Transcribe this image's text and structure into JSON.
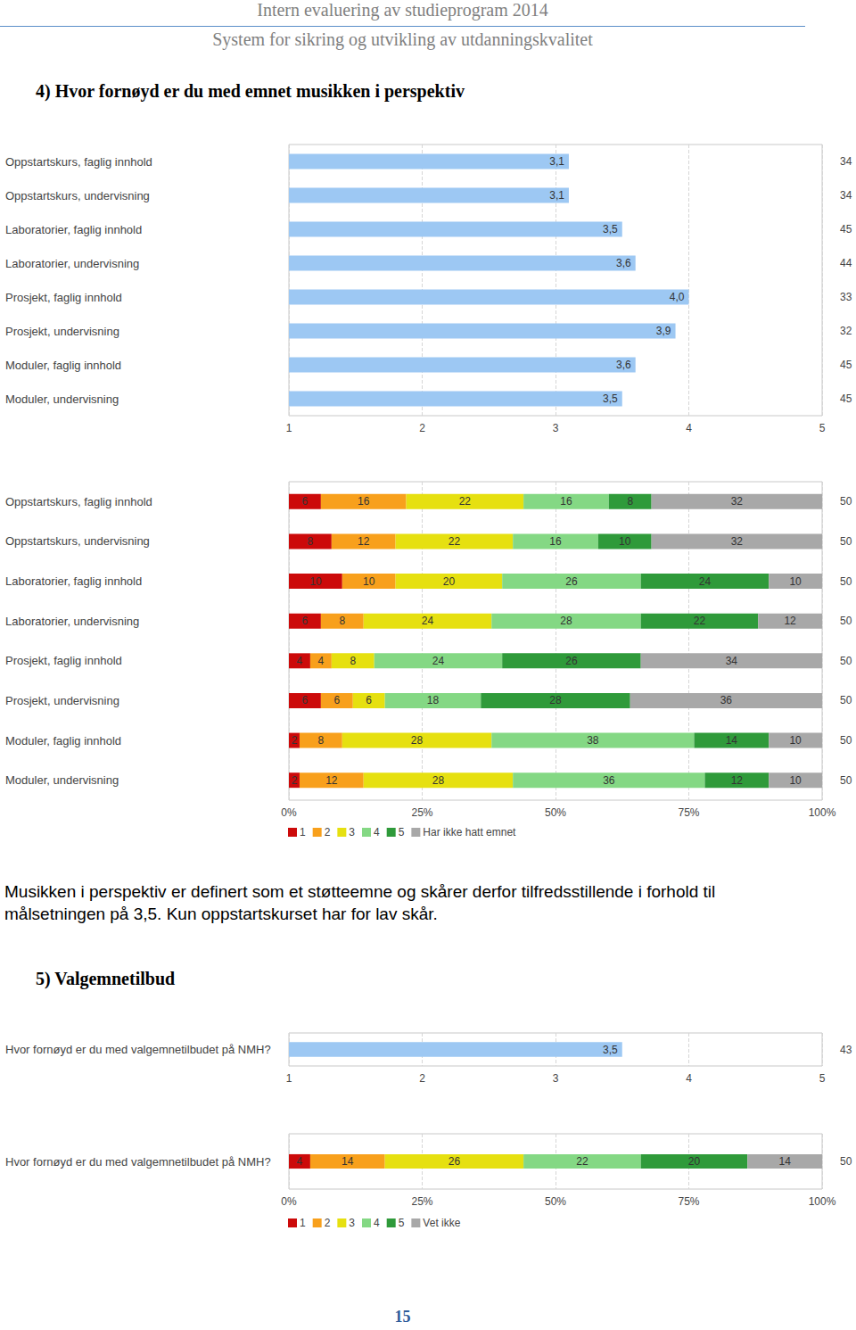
{
  "header": {
    "title": "Intern evaluering av studieprogram 2014",
    "subtitle": "System for sikring og utvikling av utdanningskvalitet"
  },
  "sections": [
    {
      "heading": "4) Hvor fornøyd er du med emnet musikken i perspektiv",
      "paragraph": "Musikken i perspektiv er definert som et støtteemne og skårer derfor tilfredsstillende i forhold til målsetningen på 3,5. Kun oppstartskurset har for lav skår."
    },
    {
      "heading": "5) Valgemnetilbud"
    }
  ],
  "page_number": "15",
  "chart_data": [
    {
      "type": "bar",
      "orientation": "horizontal",
      "grid": true,
      "data_labels": true,
      "color": "#9dc8f3",
      "categories": [
        "Oppstartskurs, faglig innhold",
        "Oppstartskurs, undervisning",
        "Laboratorier, faglig innhold",
        "Laboratorier, undervisning",
        "Prosjekt, faglig innhold",
        "Prosjekt, undervisning",
        "Moduler, faglig innhold",
        "Moduler, undervisning"
      ],
      "values": [
        3.1,
        3.1,
        3.5,
        3.6,
        4.0,
        3.9,
        3.6,
        3.5
      ],
      "value_labels": [
        "3,1",
        "3,1",
        "3,5",
        "3,6",
        "4,0",
        "3,9",
        "3,6",
        "3,5"
      ],
      "counts": [
        34,
        34,
        45,
        44,
        33,
        32,
        45,
        45
      ],
      "xlim": [
        1,
        5
      ],
      "xticks": [
        1,
        2,
        3,
        4,
        5
      ]
    },
    {
      "type": "bar",
      "orientation": "horizontal",
      "stacked": true,
      "grid": true,
      "data_labels": true,
      "legend": "bottom-left",
      "categories": [
        "Oppstartskurs, faglig innhold",
        "Oppstartskurs, undervisning",
        "Laboratorier, faglig innhold",
        "Laboratorier, undervisning",
        "Prosjekt, faglig innhold",
        "Prosjekt, undervisning",
        "Moduler, faglig innhold",
        "Moduler, undervisning"
      ],
      "series": [
        {
          "name": "1",
          "color": "#cc0a0a",
          "values": [
            6,
            8,
            10,
            6,
            4,
            6,
            2,
            2
          ]
        },
        {
          "name": "2",
          "color": "#f8a01c",
          "values": [
            16,
            12,
            10,
            8,
            4,
            6,
            8,
            12
          ]
        },
        {
          "name": "3",
          "color": "#e6e010",
          "values": [
            22,
            22,
            20,
            24,
            8,
            6,
            28,
            28
          ]
        },
        {
          "name": "4",
          "color": "#84d884",
          "values": [
            16,
            16,
            26,
            28,
            24,
            18,
            38,
            36
          ]
        },
        {
          "name": "5",
          "color": "#2f9a3a",
          "values": [
            8,
            10,
            24,
            22,
            26,
            28,
            14,
            12
          ]
        },
        {
          "name": "Har ikke hatt emnet",
          "color": "#a8a8a8",
          "values": [
            32,
            32,
            10,
            12,
            34,
            36,
            10,
            10
          ]
        }
      ],
      "counts": [
        50,
        50,
        50,
        50,
        50,
        50,
        50,
        50
      ],
      "xlim": [
        0,
        100
      ],
      "xticks": [
        {
          "value": 0,
          "label": "0%"
        },
        {
          "value": 25,
          "label": "25%"
        },
        {
          "value": 50,
          "label": "50%"
        },
        {
          "value": 75,
          "label": "75%"
        },
        {
          "value": 100,
          "label": "100%"
        }
      ]
    },
    {
      "type": "bar",
      "orientation": "horizontal",
      "grid": true,
      "data_labels": true,
      "color": "#9dc8f3",
      "categories": [
        "Hvor fornøyd er du med valgemnetilbudet på NMH?"
      ],
      "values": [
        3.5
      ],
      "value_labels": [
        "3,5"
      ],
      "counts": [
        43
      ],
      "xlim": [
        1,
        5
      ],
      "xticks": [
        1,
        2,
        3,
        4,
        5
      ]
    },
    {
      "type": "bar",
      "orientation": "horizontal",
      "stacked": true,
      "grid": true,
      "data_labels": true,
      "legend": "bottom-left",
      "categories": [
        "Hvor fornøyd er du med valgemnetilbudet på NMH?"
      ],
      "series": [
        {
          "name": "1",
          "color": "#cc0a0a",
          "values": [
            4
          ]
        },
        {
          "name": "2",
          "color": "#f8a01c",
          "values": [
            14
          ]
        },
        {
          "name": "3",
          "color": "#e6e010",
          "values": [
            26
          ]
        },
        {
          "name": "4",
          "color": "#84d884",
          "values": [
            22
          ]
        },
        {
          "name": "5",
          "color": "#2f9a3a",
          "values": [
            20
          ]
        },
        {
          "name": "Vet ikke",
          "color": "#a8a8a8",
          "values": [
            14
          ]
        }
      ],
      "counts": [
        50
      ],
      "xlim": [
        0,
        100
      ],
      "xticks": [
        {
          "value": 0,
          "label": "0%"
        },
        {
          "value": 25,
          "label": "25%"
        },
        {
          "value": 50,
          "label": "50%"
        },
        {
          "value": 75,
          "label": "75%"
        },
        {
          "value": 100,
          "label": "100%"
        }
      ]
    }
  ]
}
